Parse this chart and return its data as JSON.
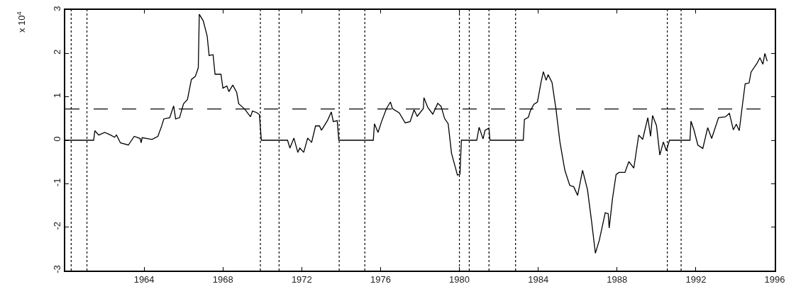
{
  "chart_data": {
    "type": "line",
    "ylabel": "x 10$^{4}$",
    "x": [
      1960.0,
      1961.44,
      1961.5,
      1961.7,
      1962.0,
      1962.3,
      1962.5,
      1962.6,
      1962.8,
      1963.2,
      1963.5,
      1963.8,
      1963.85,
      1963.9,
      1964.4,
      1964.7,
      1964.9,
      1965.0,
      1965.3,
      1965.5,
      1965.6,
      1965.8,
      1966.0,
      1966.2,
      1966.4,
      1966.6,
      1966.75,
      1966.8,
      1967.0,
      1967.2,
      1967.3,
      1967.5,
      1967.6,
      1967.9,
      1968.0,
      1968.2,
      1968.3,
      1968.5,
      1968.7,
      1968.8,
      1969.1,
      1969.4,
      1969.5,
      1969.7,
      1969.85,
      1969.95,
      1971.28,
      1971.4,
      1971.6,
      1971.8,
      1971.9,
      1972.1,
      1972.3,
      1972.5,
      1972.7,
      1972.9,
      1973.0,
      1973.3,
      1973.5,
      1973.6,
      1973.8,
      1973.88,
      1975.63,
      1975.69,
      1975.87,
      1976.05,
      1976.3,
      1976.5,
      1976.6,
      1976.95,
      1977.25,
      1977.5,
      1977.7,
      1977.86,
      1978.17,
      1978.2,
      1978.4,
      1978.65,
      1978.9,
      1979.07,
      1979.25,
      1979.43,
      1979.6,
      1979.9,
      1980.03,
      1980.1,
      1980.88,
      1981.0,
      1981.2,
      1981.3,
      1981.5,
      1981.55,
      1983.24,
      1983.3,
      1983.5,
      1983.6,
      1983.78,
      1983.96,
      1984.14,
      1984.26,
      1984.4,
      1984.5,
      1984.7,
      1984.8,
      1984.9,
      1985.1,
      1985.35,
      1985.6,
      1985.8,
      1986.0,
      1986.25,
      1986.5,
      1986.7,
      1986.9,
      1987.1,
      1987.4,
      1987.55,
      1987.6,
      1987.77,
      1987.95,
      1988.1,
      1988.4,
      1988.6,
      1988.85,
      1989.1,
      1989.3,
      1989.56,
      1989.7,
      1989.8,
      1990.0,
      1990.17,
      1990.35,
      1990.5,
      1990.66,
      1991.7,
      1991.75,
      1991.9,
      1992.1,
      1992.35,
      1992.6,
      1992.8,
      1993.15,
      1993.5,
      1993.7,
      1993.9,
      1994.05,
      1994.2,
      1994.35,
      1994.5,
      1994.7,
      1994.8,
      1995.1,
      1995.25,
      1995.4,
      1995.5,
      1995.62
    ],
    "series": [
      {
        "color": "#000000",
        "values": [
          0,
          0,
          0.22,
          0.12,
          0.18,
          0.12,
          0.07,
          0.12,
          -0.06,
          -0.11,
          0.09,
          0.04,
          -0.06,
          0.06,
          0.02,
          0.09,
          0.34,
          0.49,
          0.52,
          0.79,
          0.49,
          0.52,
          0.84,
          0.94,
          1.4,
          1.47,
          1.67,
          2.9,
          2.75,
          2.4,
          1.95,
          1.97,
          1.52,
          1.52,
          1.2,
          1.25,
          1.12,
          1.27,
          1.1,
          0.84,
          0.72,
          0.54,
          0.67,
          0.64,
          0.59,
          0,
          0,
          -0.18,
          0.05,
          -0.28,
          -0.18,
          -0.28,
          0.05,
          -0.05,
          0.33,
          0.33,
          0.23,
          0.45,
          0.65,
          0.43,
          0.45,
          0,
          0,
          0.38,
          0.18,
          0.43,
          0.73,
          0.88,
          0.73,
          0.63,
          0.4,
          0.43,
          0.7,
          0.55,
          0.73,
          0.98,
          0.75,
          0.6,
          0.85,
          0.78,
          0.5,
          0.38,
          -0.3,
          -0.8,
          -0.78,
          0,
          0,
          0.3,
          0.03,
          0.23,
          0.28,
          0,
          0,
          0.48,
          0.53,
          0.68,
          0.83,
          0.88,
          1.33,
          1.58,
          1.38,
          1.51,
          1.33,
          1.02,
          0.72,
          -0.04,
          -0.69,
          -1.04,
          -1.07,
          -1.27,
          -0.69,
          -1.14,
          -1.84,
          -2.6,
          -2.3,
          -1.67,
          -1.69,
          -2.02,
          -1.34,
          -0.79,
          -0.74,
          -0.74,
          -0.49,
          -0.64,
          0.12,
          0.02,
          0.52,
          0.09,
          0.57,
          0.34,
          -0.34,
          -0.04,
          -0.24,
          0,
          0,
          0.44,
          0.24,
          -0.11,
          -0.19,
          0.29,
          0.04,
          0.52,
          0.54,
          0.62,
          0.24,
          0.37,
          0.22,
          0.77,
          1.3,
          1.32,
          1.57,
          1.77,
          1.9,
          1.75,
          2.0,
          1.82
        ]
      }
    ],
    "xlim": [
      1960,
      1996
    ],
    "xticks": [
      1964,
      1968,
      1972,
      1976,
      1980,
      1984,
      1988,
      1992,
      1996
    ],
    "ylim": [
      -3,
      3
    ],
    "yticks": [
      -3,
      -2,
      -1,
      0,
      1,
      2,
      3
    ],
    "grid": false,
    "marker": "none",
    "line_style": "solid",
    "ref_lines": [
      {
        "axis": "y",
        "value": 0.72,
        "color": "#000000",
        "line_style": "dashed"
      },
      {
        "axis": "x",
        "value": 1960.3,
        "color": "#000000",
        "line_style": "dotted"
      },
      {
        "axis": "x",
        "value": 1961.1,
        "color": "#000000",
        "line_style": "dotted"
      },
      {
        "axis": "x",
        "value": 1969.9,
        "color": "#000000",
        "line_style": "dotted"
      },
      {
        "axis": "x",
        "value": 1970.85,
        "color": "#000000",
        "line_style": "dotted"
      },
      {
        "axis": "x",
        "value": 1973.9,
        "color": "#000000",
        "line_style": "dotted"
      },
      {
        "axis": "x",
        "value": 1975.2,
        "color": "#000000",
        "line_style": "dotted"
      },
      {
        "axis": "x",
        "value": 1980.0,
        "color": "#000000",
        "line_style": "dotted"
      },
      {
        "axis": "x",
        "value": 1980.5,
        "color": "#000000",
        "line_style": "dotted"
      },
      {
        "axis": "x",
        "value": 1981.5,
        "color": "#000000",
        "line_style": "dotted"
      },
      {
        "axis": "x",
        "value": 1982.85,
        "color": "#000000",
        "line_style": "dotted"
      },
      {
        "axis": "x",
        "value": 1990.55,
        "color": "#000000",
        "line_style": "dotted"
      },
      {
        "axis": "x",
        "value": 1991.25,
        "color": "#000000",
        "line_style": "dotted"
      }
    ]
  }
}
